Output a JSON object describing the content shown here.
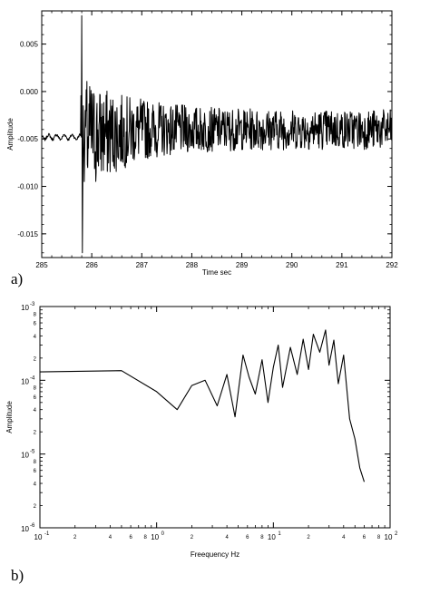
{
  "chart_data": [
    {
      "panel_label": "a)",
      "type": "line",
      "xlabel": "Time sec",
      "ylabel": "Amplitude",
      "xlim": [
        285,
        292
      ],
      "ylim": [
        -0.0175,
        0.0085
      ],
      "x_ticks": [
        "285",
        "286",
        "287",
        "288",
        "289",
        "290",
        "291",
        "292"
      ],
      "y_ticks": [
        "0.005",
        "0.000",
        "-0.005",
        "-0.010",
        "-0.015"
      ],
      "grid": false,
      "signal_summary": {
        "pre_event_baseline": -0.0048,
        "event_onset_time": 285.8,
        "peak_max": 0.008,
        "peak_min": -0.017,
        "coda_mean": -0.004
      }
    },
    {
      "panel_label": "b)",
      "type": "line",
      "xlabel": "Freequency Hz",
      "ylabel": "Amplitude",
      "xscale": "log",
      "yscale": "log",
      "xlim": [
        0.1,
        100
      ],
      "ylim": [
        1e-06,
        0.001
      ],
      "x_ticks": [
        {
          "base": "10",
          "exp": "-1"
        },
        {
          "base": "10",
          "exp": "0"
        },
        {
          "base": "10",
          "exp": "1"
        },
        {
          "base": "10",
          "exp": "2"
        }
      ],
      "y_ticks": [
        {
          "base": "10",
          "exp": "-3"
        },
        {
          "base": "10",
          "exp": "-4"
        },
        {
          "base": "10",
          "exp": "-5"
        },
        {
          "base": "10",
          "exp": "-6"
        }
      ],
      "minor_tick_labels": [
        "2",
        "4",
        "6",
        "8"
      ],
      "grid": false,
      "x": [
        0.1,
        0.5,
        1.0,
        1.5,
        2.0,
        2.6,
        3.3,
        4.0,
        4.7,
        5.5,
        6.2,
        7.0,
        8.0,
        9.0,
        10.0,
        11.0,
        12.0,
        14.0,
        16.0,
        18.0,
        20.0,
        22.0,
        25.0,
        28.0,
        30.0,
        33.0,
        36.0,
        40.0,
        45.0,
        50.0,
        55.0,
        60.0
      ],
      "y": [
        0.00013,
        0.000135,
        7e-05,
        4e-05,
        8.5e-05,
        0.0001,
        4.5e-05,
        0.00012,
        3.2e-05,
        0.00022,
        0.00011,
        6.5e-05,
        0.00019,
        5e-05,
        0.00015,
        0.0003,
        8e-05,
        0.00028,
        0.00012,
        0.00036,
        0.00014,
        0.00042,
        0.00024,
        0.00048,
        0.00016,
        0.00035,
        9e-05,
        0.00022,
        3e-05,
        1.6e-05,
        6.5e-06,
        4.2e-06
      ]
    }
  ]
}
